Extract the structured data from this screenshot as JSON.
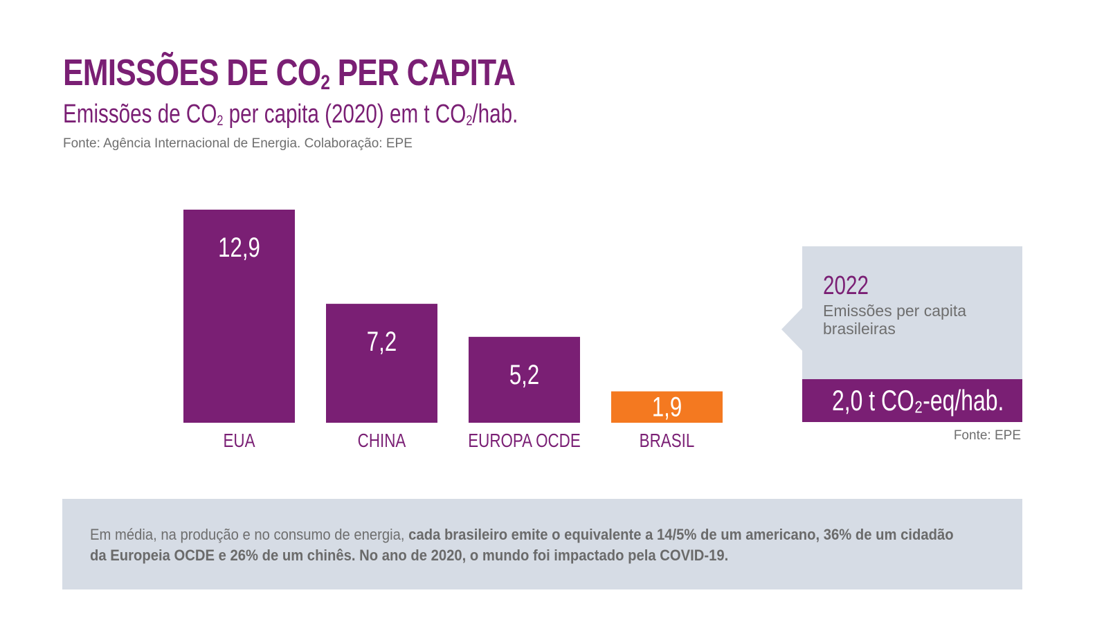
{
  "header": {
    "title_pre": "EMISSÕES DE CO",
    "title_sub": "2",
    "title_post": " PER CAPITA",
    "subtitle_pre": "Emissões de CO",
    "subtitle_sub1": "2",
    "subtitle_mid": " per capita (2020) em t CO",
    "subtitle_sub2": "2",
    "subtitle_post": "/hab.",
    "source": "Fonte: Agência Internacional de Energia. Colaboração: EPE"
  },
  "colors": {
    "primary": "#7a1f74",
    "highlight": "#f47920",
    "panel": "#d6dce5",
    "gray_text": "#6e6e6e"
  },
  "chart_data": {
    "type": "bar",
    "title": "Emissões de CO2 per capita (2020) em t CO2/hab.",
    "xlabel": "",
    "ylabel": "t CO2/hab.",
    "categories": [
      "EUA",
      "CHINA",
      "EUROPA OCDE",
      "BRASIL"
    ],
    "values": [
      12.9,
      7.2,
      5.2,
      1.9
    ],
    "value_labels": [
      "12,9",
      "7,2",
      "5,2",
      "1,9"
    ],
    "bar_colors": [
      "#7a1f74",
      "#7a1f74",
      "#7a1f74",
      "#f47920"
    ],
    "ylim": [
      0,
      12.9
    ],
    "grid": false,
    "legend": "none"
  },
  "callout": {
    "year": "2022",
    "description": "Emissões per capita brasileiras",
    "value": "2,0 t CO₂-eq/hab.",
    "source": "Fonte: EPE"
  },
  "footer": {
    "text_plain": "Em média, na produção e no consumo de energia, ",
    "text_bold": "cada brasileiro emite o equivalente a 14/5% de um americano, 36% de um cidadão da Europeia OCDE e 26% de um chinês. No ano de 2020, o mundo foi impactado pela COVID-19."
  }
}
